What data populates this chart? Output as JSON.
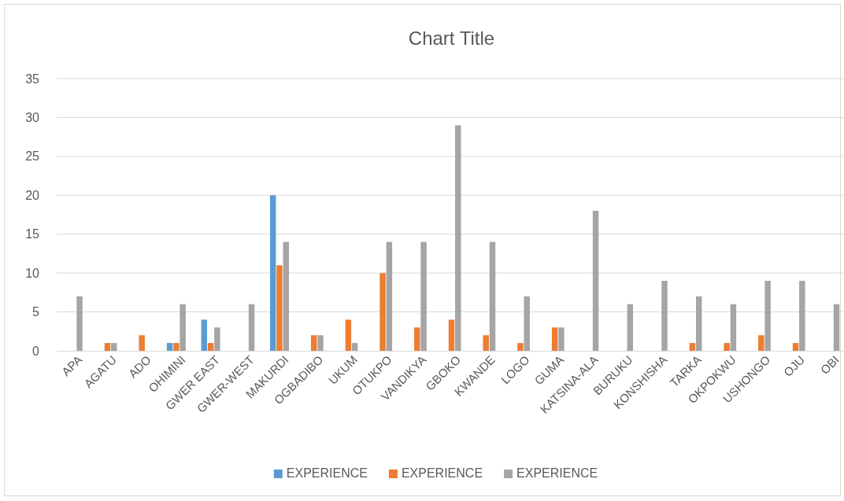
{
  "chart_data": {
    "type": "bar",
    "title": "Chart Title",
    "categories": [
      "APA",
      "AGATU",
      "ADO",
      "OHIMINI",
      "GWER EAST",
      "GWER-WEST",
      "MAKURDI",
      "OGBADIBO",
      "UKUM",
      "OTUKPO",
      "VANDIKYA",
      "GBOKO",
      "KWANDE",
      "LOGO",
      "GUMA",
      "KATSINA-ALA",
      "BURUKU",
      "KONSHISHA",
      "TARKA",
      "OKPOKWU",
      "USHONGO",
      "OJU",
      "OBI"
    ],
    "series": [
      {
        "name": "EXPERIENCE",
        "color": "#5b9bd5",
        "values": [
          0,
          0,
          0,
          1,
          4,
          0,
          20,
          0,
          0,
          0,
          0,
          0,
          0,
          0,
          0,
          0,
          0,
          0,
          0,
          0,
          0,
          0,
          0
        ]
      },
      {
        "name": "EXPERIENCE",
        "color": "#ed7d31",
        "values": [
          0,
          1,
          2,
          1,
          1,
          0,
          11,
          2,
          4,
          10,
          3,
          4,
          2,
          1,
          3,
          0,
          0,
          0,
          1,
          1,
          2,
          1,
          0
        ]
      },
      {
        "name": "EXPERIENCE",
        "color": "#a5a5a5",
        "values": [
          7,
          1,
          0,
          6,
          3,
          6,
          14,
          2,
          1,
          14,
          14,
          29,
          14,
          7,
          3,
          18,
          6,
          9,
          7,
          6,
          9,
          9,
          6
        ]
      }
    ],
    "ylim": [
      0,
      35
    ],
    "yticks": [
      0,
      5,
      10,
      15,
      20,
      25,
      30,
      35
    ],
    "grid": "y",
    "legend": "bottom"
  }
}
